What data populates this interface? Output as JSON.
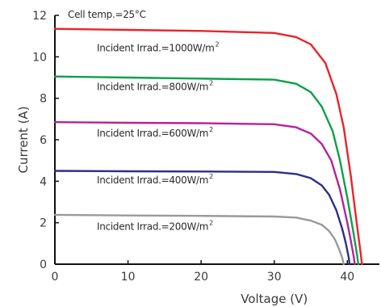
{
  "chart_data": {
    "type": "line",
    "title": "",
    "xlabel": "Voltage (V)",
    "ylabel": "Current (A)",
    "note": "Cell temp.=25°C",
    "xlim": [
      0,
      43.5
    ],
    "ylim": [
      0,
      12
    ],
    "xticks": [
      0,
      10,
      20,
      30,
      40
    ],
    "yticks": [
      0,
      2,
      4,
      6,
      8,
      10,
      12
    ],
    "grid": false,
    "series": [
      {
        "name": "Incident Irrad.=1000W/m",
        "superscript": "2",
        "color": "#e8242a",
        "x": [
          0,
          10,
          20,
          30,
          33,
          35,
          37,
          38.5,
          39.5,
          40.5,
          41.2,
          41.8,
          42.0
        ],
        "y": [
          11.35,
          11.3,
          11.25,
          11.15,
          10.95,
          10.6,
          9.7,
          8.2,
          6.6,
          4.2,
          2.2,
          0.6,
          0
        ]
      },
      {
        "name": "Incident Irrad.=800W/m",
        "superscript": "2",
        "color": "#0ea04a",
        "x": [
          0,
          10,
          20,
          30,
          33,
          35,
          36.5,
          38,
          39,
          40,
          40.8,
          41.3,
          41.5
        ],
        "y": [
          9.05,
          9.0,
          8.95,
          8.9,
          8.7,
          8.3,
          7.6,
          6.4,
          5.0,
          3.2,
          1.6,
          0.5,
          0
        ]
      },
      {
        "name": "Incident Irrad.=600W/m",
        "superscript": "2",
        "color": "#b7219c",
        "x": [
          0,
          10,
          20,
          30,
          33,
          35,
          36.5,
          37.8,
          39,
          40,
          40.5,
          40.9,
          41.0
        ],
        "y": [
          6.85,
          6.82,
          6.8,
          6.75,
          6.6,
          6.3,
          5.8,
          5.0,
          3.6,
          2.0,
          1.1,
          0.3,
          0
        ]
      },
      {
        "name": "Incident Irrad.=400W/m",
        "superscript": "2",
        "color": "#2a2f8c",
        "x": [
          0,
          10,
          20,
          30,
          33,
          35,
          36.5,
          37.5,
          38.5,
          39.3,
          39.8,
          40.2,
          40.3
        ],
        "y": [
          4.5,
          4.48,
          4.47,
          4.45,
          4.35,
          4.15,
          3.8,
          3.35,
          2.6,
          1.7,
          1.0,
          0.3,
          0
        ]
      },
      {
        "name": "Incident Irrad.=200W/m",
        "superscript": "2",
        "color": "#9a9a9a",
        "x": [
          0,
          10,
          20,
          30,
          33,
          35,
          36.5,
          37.5,
          38.3,
          38.9,
          39.3,
          39.5
        ],
        "y": [
          2.38,
          2.35,
          2.33,
          2.3,
          2.25,
          2.1,
          1.9,
          1.6,
          1.2,
          0.7,
          0.3,
          0
        ]
      }
    ],
    "axis_color": "#111111"
  }
}
